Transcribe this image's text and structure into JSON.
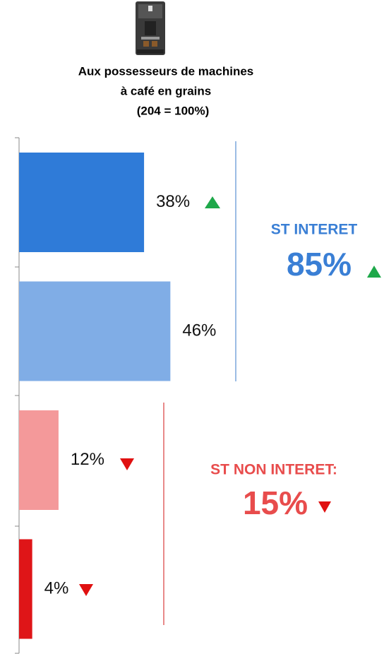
{
  "chart_data": {
    "type": "hbar",
    "title": [
      "Aux possesseurs de machines",
      "à café en grains",
      "(204 = 100%)"
    ],
    "categories": [
      null,
      null,
      null,
      null
    ],
    "values": [
      38,
      46,
      12,
      4
    ],
    "value_labels": [
      "38%",
      "46%",
      "12%",
      "4%"
    ],
    "colors": [
      "#2f7bd8",
      "#80ade6",
      "#f4999a",
      "#df1518"
    ],
    "xlim": [
      0,
      100
    ],
    "annotations": [
      "ST INTERET",
      "85%",
      "ST NON INTERET:",
      "15%"
    ]
  }
}
